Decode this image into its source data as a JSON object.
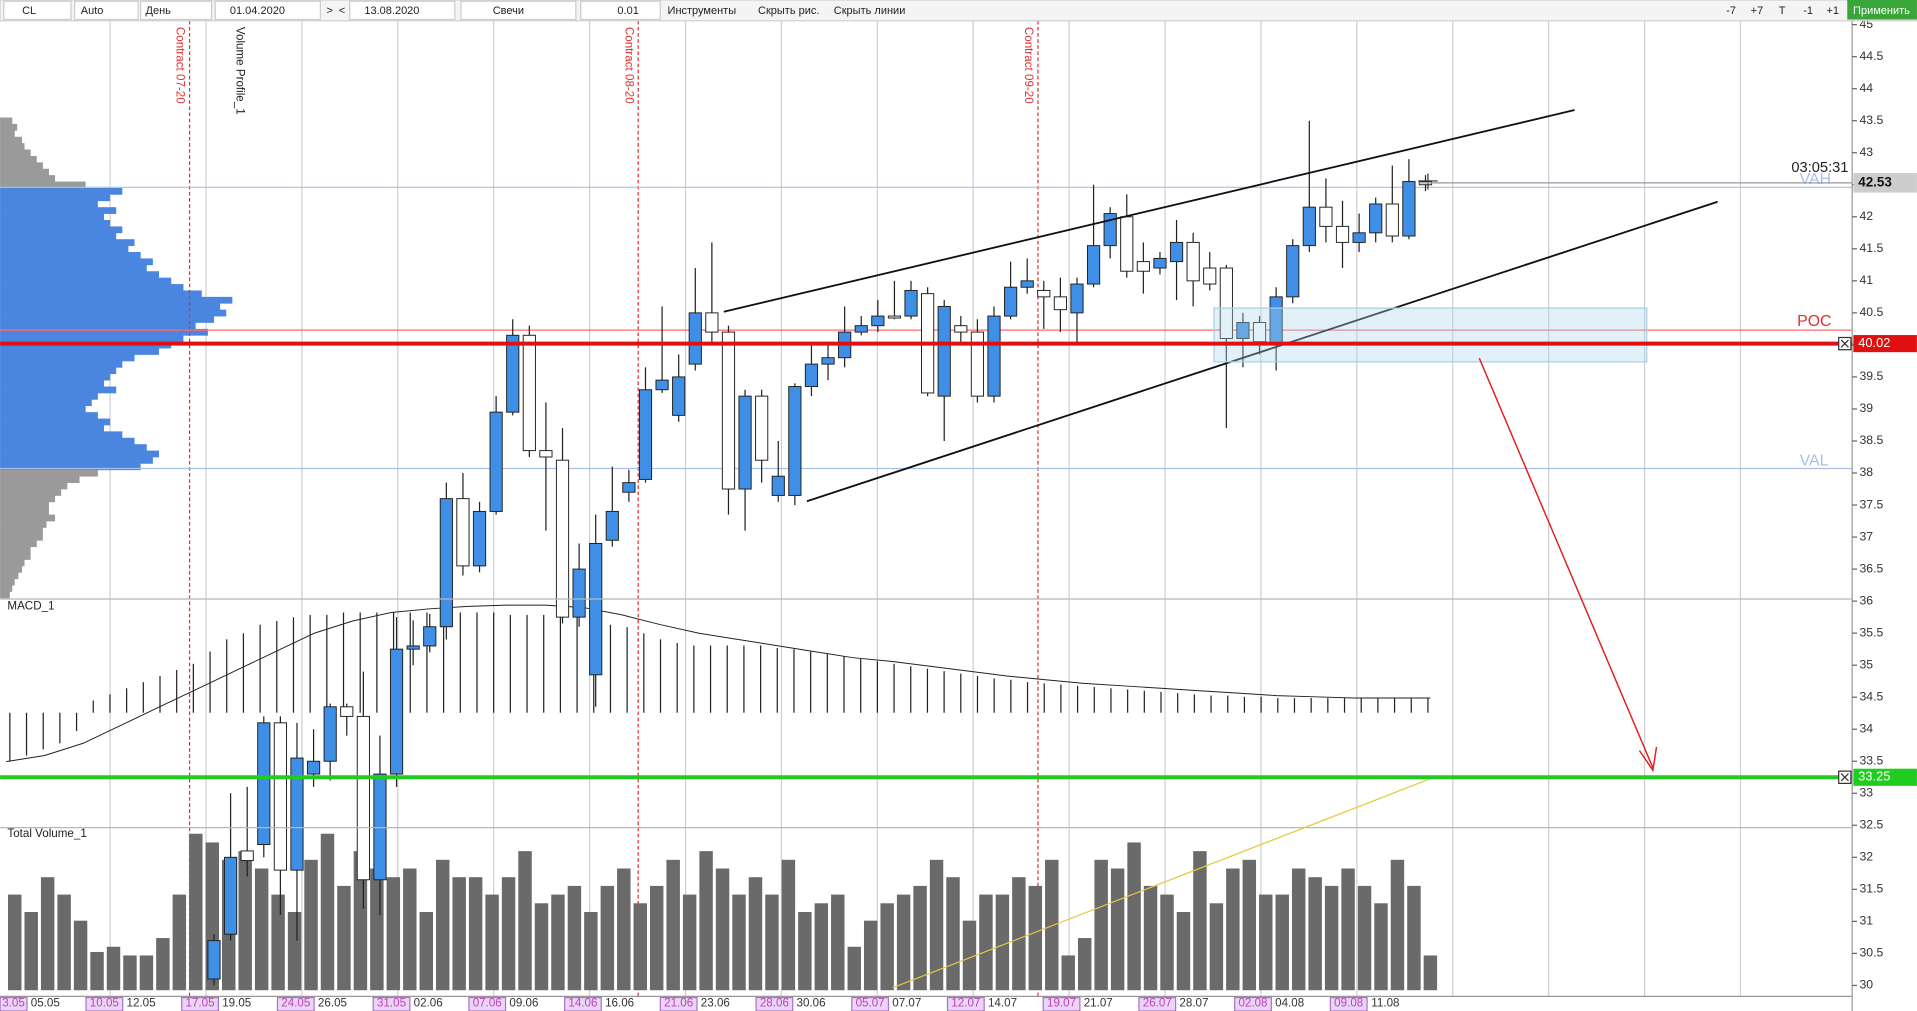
{
  "toolbar": {
    "symbol": "CL",
    "scale": "Auto",
    "period": "День",
    "date_from": "01.04.2020",
    "date_nav": [
      ">",
      "<"
    ],
    "date_to": "13.08.2020",
    "style": "Свечи",
    "step": "0.01",
    "tools": "Инструменты",
    "hide_drawings": "Скрыть рис.",
    "hide_lines": "Скрыть линии",
    "zoom": [
      "-7",
      "+7",
      "T",
      "-1",
      "+1"
    ],
    "apply": "Применить"
  },
  "chart_data": {
    "type": "candlestick",
    "ylim": [
      29.83,
      45.06
    ],
    "yticks": [
      45,
      44.5,
      44,
      43.5,
      43,
      42.5,
      42,
      41.5,
      41,
      40.5,
      40,
      39.5,
      39,
      38.5,
      38,
      37.5,
      37,
      36.5,
      36,
      35.5,
      35,
      34.5,
      34,
      33.5,
      33,
      32.5,
      32,
      31.5,
      31,
      30.5,
      30
    ],
    "open": [
      30.1,
      30.8,
      32.1,
      32.2,
      34.1,
      31.8,
      33.3,
      33.5,
      34.35,
      34.2,
      31.65,
      33.3,
      35.25,
      35.3,
      35.6,
      37.6,
      36.55,
      37.4,
      38.95,
      40.15,
      38.35,
      38.2,
      35.75,
      34.85,
      36.95,
      37.7,
      37.9,
      39.3,
      38.9,
      39.7,
      40.5,
      40.2,
      37.75,
      39.2,
      37.65,
      37.65,
      39.35,
      39.7,
      39.8,
      40.2,
      40.3,
      40.45,
      40.45,
      40.8,
      39.2,
      40.3,
      40.2,
      39.2,
      40.45,
      40.9,
      40.85,
      40.75,
      40.5,
      40.95,
      41.55,
      42.0,
      41.3,
      41.2,
      41.3,
      41.6,
      41.2,
      41.2,
      40.1,
      40.35,
      40.0,
      40.75,
      41.55,
      42.15,
      41.85,
      41.6,
      41.75,
      42.2,
      41.7,
      42.55
    ],
    "high": [
      30.8,
      33.0,
      33.1,
      34.2,
      34.2,
      34.1,
      34.0,
      34.4,
      34.4,
      34.9,
      33.9,
      35.75,
      35.7,
      35.8,
      37.85,
      38.0,
      37.55,
      39.2,
      40.4,
      40.3,
      39.1,
      38.7,
      36.9,
      37.35,
      38.1,
      38.05,
      39.65,
      40.6,
      39.85,
      41.2,
      41.6,
      40.3,
      39.3,
      39.3,
      38.5,
      39.4,
      40.05,
      40.05,
      40.6,
      40.45,
      40.7,
      41.0,
      41.0,
      40.9,
      40.7,
      40.45,
      40.4,
      40.6,
      41.3,
      41.35,
      41.0,
      41.05,
      41.05,
      42.5,
      42.15,
      42.35,
      41.6,
      41.45,
      41.95,
      41.75,
      41.45,
      41.25,
      40.5,
      40.45,
      40.9,
      41.65,
      43.5,
      42.6,
      42.25,
      42.05,
      42.3,
      42.8,
      42.9,
      42.65
    ],
    "low": [
      30.0,
      30.7,
      31.7,
      32.0,
      31.1,
      30.7,
      33.1,
      33.2,
      33.9,
      31.2,
      31.1,
      33.1,
      35.0,
      35.2,
      35.4,
      36.4,
      36.45,
      37.35,
      38.9,
      38.25,
      37.1,
      35.65,
      35.6,
      34.35,
      36.85,
      37.55,
      37.85,
      39.25,
      38.8,
      39.6,
      40.05,
      37.35,
      37.1,
      37.85,
      37.55,
      37.5,
      39.2,
      39.45,
      39.65,
      40.15,
      40.2,
      40.4,
      40.4,
      39.2,
      38.5,
      40.05,
      39.1,
      39.1,
      40.4,
      40.8,
      40.25,
      40.2,
      40.0,
      40.9,
      41.35,
      41.05,
      40.8,
      41.1,
      40.7,
      40.6,
      40.85,
      38.7,
      39.65,
      39.85,
      39.6,
      40.65,
      41.45,
      41.6,
      41.2,
      41.45,
      41.6,
      41.6,
      41.65,
      42.4
    ],
    "close": [
      30.7,
      32.0,
      31.95,
      34.1,
      31.8,
      33.55,
      33.5,
      34.35,
      34.2,
      31.65,
      33.3,
      35.25,
      35.3,
      35.6,
      37.6,
      36.55,
      37.4,
      38.95,
      40.15,
      38.35,
      38.25,
      35.75,
      36.5,
      36.9,
      37.4,
      37.85,
      39.3,
      39.45,
      39.5,
      40.5,
      40.2,
      37.75,
      39.2,
      38.2,
      37.95,
      39.35,
      39.7,
      39.8,
      40.2,
      40.3,
      40.45,
      40.42,
      40.85,
      39.25,
      40.6,
      40.2,
      39.2,
      40.45,
      40.9,
      41.0,
      40.75,
      40.55,
      40.95,
      41.55,
      42.05,
      41.15,
      41.15,
      41.35,
      41.6,
      41.0,
      40.95,
      40.1,
      40.35,
      40.05,
      40.75,
      41.55,
      42.15,
      41.85,
      41.6,
      41.75,
      42.2,
      41.7,
      42.55,
      42.5
    ],
    "dates": [
      "3.05",
      "05.05",
      "10.05",
      "12.05",
      "17.05",
      "19.05",
      "24.05",
      "26.05",
      "31.05",
      "02.06",
      "07.06",
      "09.06",
      "14.06",
      "16.06",
      "21.06",
      "23.06",
      "28.06",
      "30.06",
      "05.07",
      "07.07",
      "12.07",
      "14.07",
      "19.07",
      "21.07",
      "26.07",
      "28.07",
      "02.08",
      "04.08",
      "09.08",
      "11.08"
    ],
    "timer": "03:05:31",
    "last_price": 42.53,
    "vah": {
      "label": "VAH",
      "value": 42.46
    },
    "poc": {
      "label": "POC",
      "value": 40.23
    },
    "val": {
      "label": "VAL",
      "value": 38.07
    },
    "lines": [
      {
        "value": 40.02,
        "color": "#e01010"
      },
      {
        "value": 33.25,
        "color": "#1fcc1f"
      }
    ],
    "contracts": [
      "Contract 07-20",
      "Contract 08-20",
      "Contract 09-20"
    ],
    "profile": {
      "name": "Volume Profile_1",
      "range": [
        43.5,
        36.1
      ],
      "values": [
        10,
        14,
        12,
        18,
        20,
        25,
        30,
        35,
        40,
        45,
        70,
        100,
        90,
        80,
        95,
        85,
        90,
        100,
        95,
        110,
        105,
        115,
        125,
        120,
        130,
        140,
        150,
        165,
        190,
        180,
        185,
        175,
        160,
        170,
        150,
        140,
        130,
        110,
        100,
        95,
        90,
        85,
        95,
        80,
        75,
        70,
        80,
        90,
        85,
        100,
        110,
        120,
        130,
        125,
        115,
        80,
        65,
        55,
        50,
        45,
        40,
        40,
        45,
        38,
        35,
        35,
        30,
        25,
        25,
        20,
        18,
        15,
        12,
        10,
        8
      ]
    },
    "macd": {
      "name": "MACD_1",
      "hist": [
        -40,
        -35,
        -30,
        -25,
        -15,
        10,
        15,
        20,
        25,
        30,
        35,
        40,
        50,
        60,
        65,
        72,
        75,
        78,
        80,
        80,
        82,
        82,
        82,
        82,
        82,
        82,
        82,
        82,
        82,
        82,
        80,
        80,
        80,
        80,
        78,
        75,
        72,
        70,
        65,
        60,
        57,
        55,
        55,
        55,
        55,
        55,
        53,
        52,
        50,
        48,
        46,
        44,
        42,
        40,
        38,
        36,
        34,
        32,
        30,
        28,
        27,
        25,
        24,
        23,
        22,
        21,
        20,
        19,
        18,
        17,
        16,
        15,
        14,
        14,
        13,
        13,
        12,
        12,
        12,
        12,
        12,
        12,
        12,
        12,
        12,
        12
      ],
      "signal": [
        -40,
        -35,
        -25,
        -10,
        5,
        20,
        35,
        50,
        65,
        75,
        82,
        85,
        87,
        88,
        88,
        86,
        80,
        72,
        65,
        60,
        55,
        50,
        45,
        42,
        38,
        34,
        30,
        27,
        24,
        22,
        20,
        18,
        16,
        14,
        13,
        12,
        12,
        12
      ]
    },
    "volume": {
      "name": "Total Volume_1",
      "values": [
        55,
        45,
        65,
        55,
        40,
        22,
        25,
        20,
        20,
        30,
        55,
        90,
        85,
        75,
        80,
        70,
        55,
        45,
        75,
        90,
        60,
        80,
        70,
        65,
        70,
        45,
        75,
        65,
        65,
        55,
        65,
        80,
        50,
        55,
        60,
        45,
        60,
        70,
        50,
        60,
        75,
        55,
        80,
        70,
        55,
        65,
        55,
        75,
        45,
        50,
        55,
        25,
        40,
        50,
        55,
        60,
        75,
        65,
        40,
        55,
        55,
        65,
        60,
        75,
        20,
        30,
        75,
        70,
        85,
        60,
        55,
        45,
        80,
        50,
        70,
        75,
        55,
        55,
        70,
        65,
        60,
        70,
        60,
        50,
        75,
        60,
        20
      ]
    }
  }
}
